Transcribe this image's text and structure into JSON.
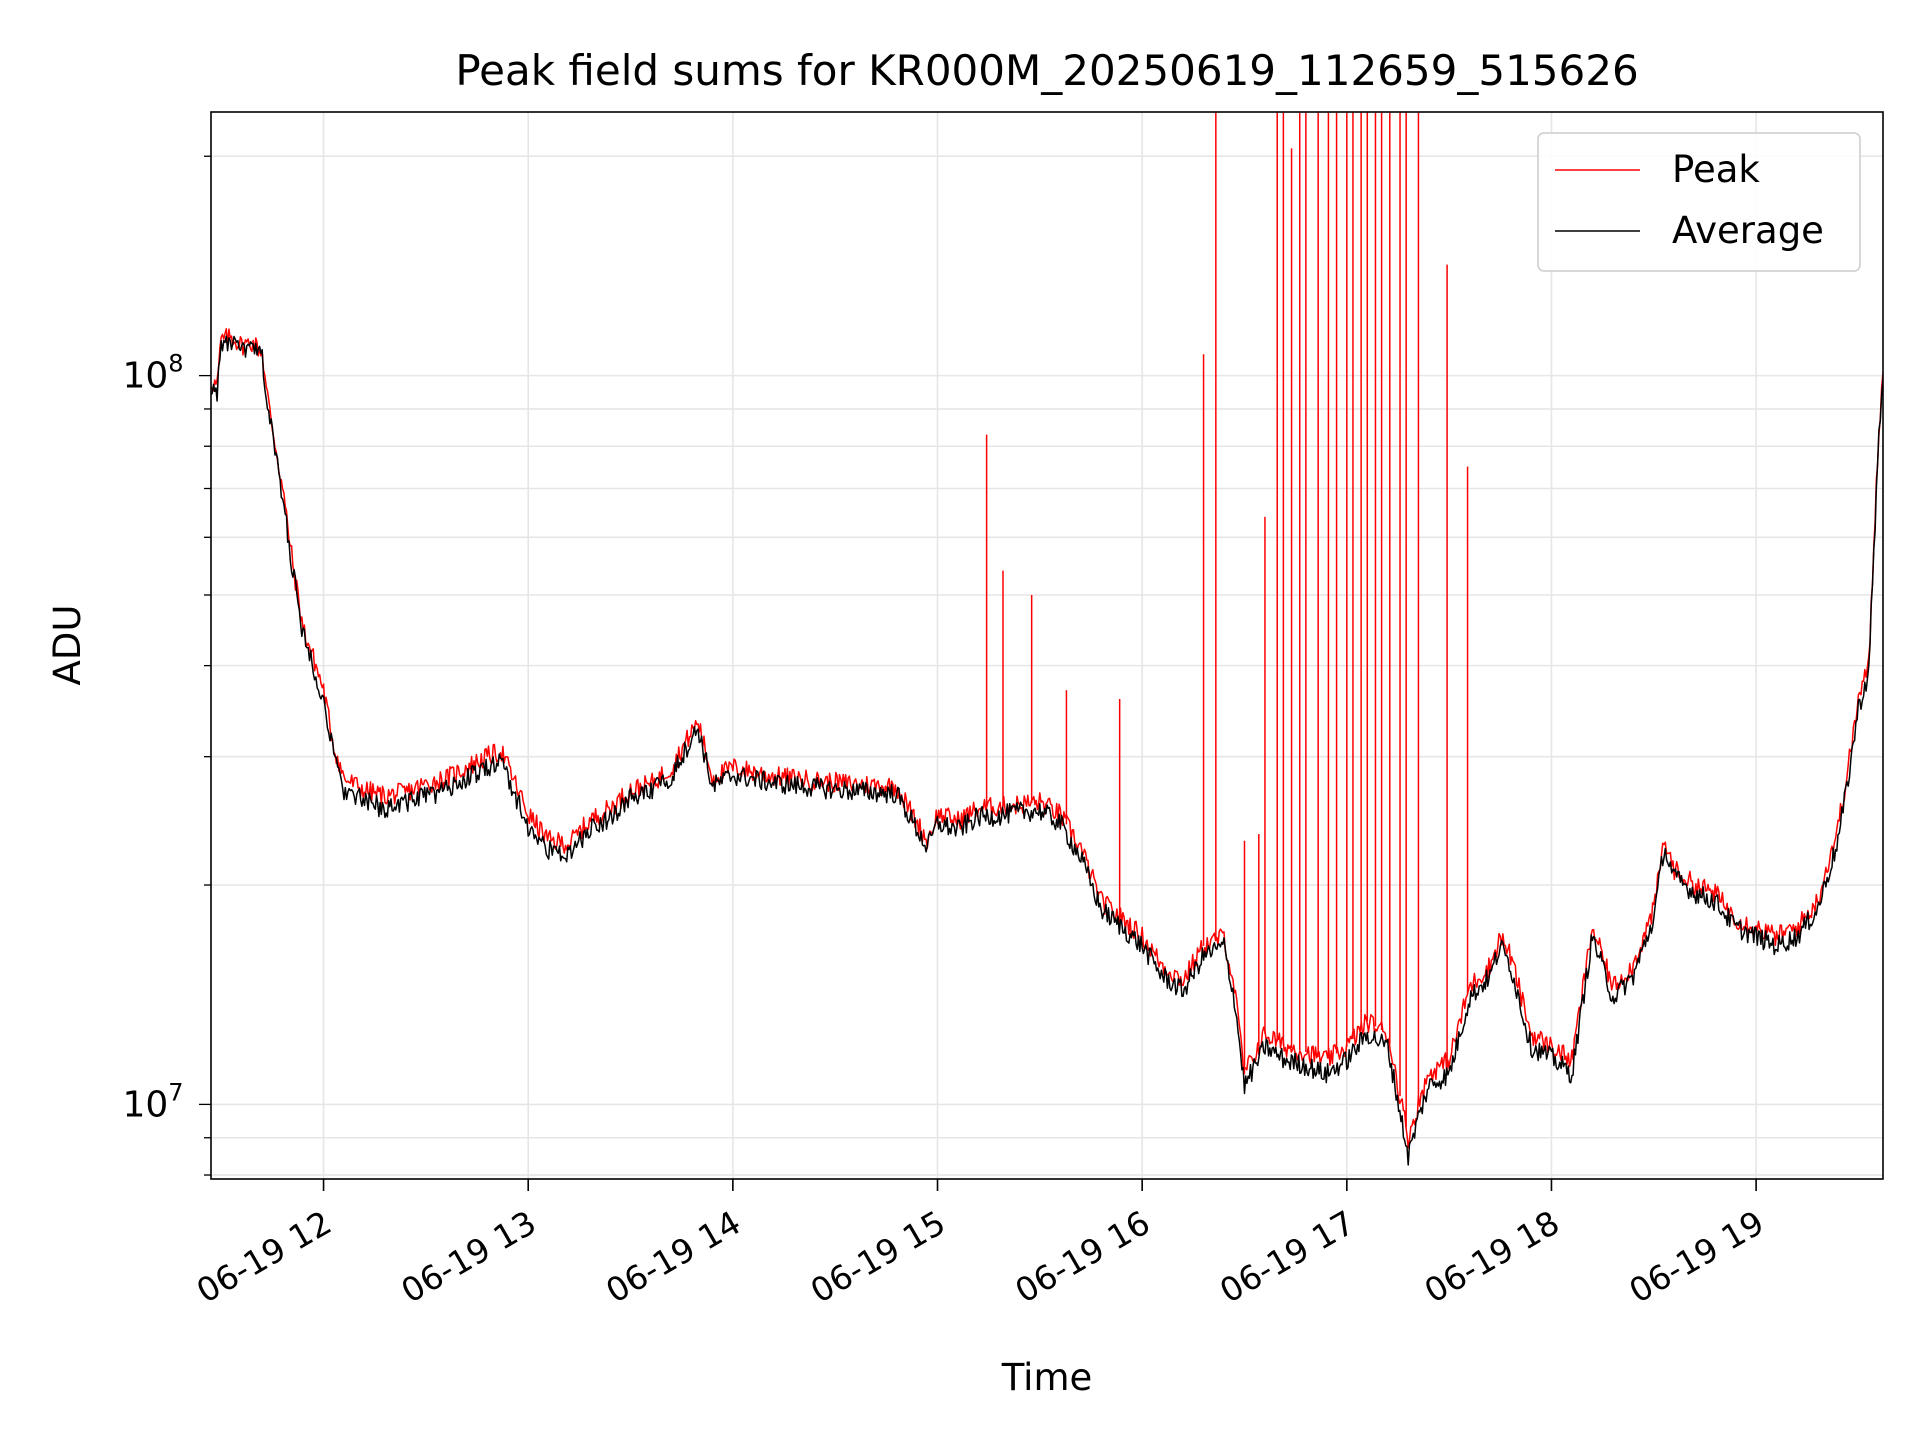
{
  "chart_data": {
    "type": "line",
    "title": "Peak field sums for KR000M_20250619_112659_515626",
    "xlabel": "Time",
    "ylabel": "ADU",
    "x_unit": "hours (2025-06-19, HH)",
    "xlim": [
      11.45,
      19.62
    ],
    "ylim": [
      7900000.0,
      230000000.0
    ],
    "yscale": "log",
    "grid": true,
    "legend_position": "top-right",
    "x_ticks": [
      {
        "value": 12,
        "label": "06-19 12"
      },
      {
        "value": 13,
        "label": "06-19 13"
      },
      {
        "value": 14,
        "label": "06-19 14"
      },
      {
        "value": 15,
        "label": "06-19 15"
      },
      {
        "value": 16,
        "label": "06-19 16"
      },
      {
        "value": 17,
        "label": "06-19 17"
      },
      {
        "value": 18,
        "label": "06-19 18"
      },
      {
        "value": 19,
        "label": "06-19 19"
      }
    ],
    "y_ticks": [
      {
        "value": 10000000,
        "base": "10",
        "exp": "7"
      },
      {
        "value": 100000000,
        "base": "10",
        "exp": "8"
      }
    ],
    "series": [
      {
        "name": "Peak",
        "color": "#ff0000",
        "x": [
          11.45,
          11.48,
          11.5,
          11.55,
          11.6,
          11.65,
          11.7,
          11.72,
          11.75,
          11.8,
          11.85,
          11.9,
          11.95,
          12.0,
          12.05,
          12.1,
          12.15,
          12.2,
          12.3,
          12.4,
          12.5,
          12.6,
          12.7,
          12.8,
          12.87,
          12.95,
          13.0,
          13.1,
          13.2,
          13.3,
          13.4,
          13.5,
          13.6,
          13.7,
          13.8,
          13.83,
          13.9,
          14.0,
          14.2,
          14.4,
          14.6,
          14.8,
          14.95,
          15.0,
          15.1,
          15.2,
          15.3,
          15.4,
          15.5,
          15.6,
          15.7,
          15.8,
          15.9,
          16.0,
          16.1,
          16.2,
          16.3,
          16.4,
          16.45,
          16.5,
          16.6,
          16.7,
          16.8,
          16.9,
          17.0,
          17.1,
          17.2,
          17.3,
          17.35,
          17.4,
          17.5,
          17.6,
          17.7,
          17.75,
          17.8,
          17.9,
          18.0,
          18.1,
          18.2,
          18.3,
          18.4,
          18.5,
          18.55,
          18.6,
          18.7,
          18.8,
          18.9,
          19.0,
          19.1,
          19.2,
          19.3,
          19.4,
          19.45,
          19.5,
          19.55,
          19.6,
          19.62
        ],
        "y": [
          98000000,
          97000000,
          112000000,
          113000000,
          110000000,
          111000000,
          108000000,
          96000000,
          85000000,
          70000000,
          55000000,
          45000000,
          41000000,
          37000000,
          31000000,
          28000000,
          27500000,
          27000000,
          26500000,
          26800000,
          27500000,
          28000000,
          29000000,
          30000000,
          30500000,
          27000000,
          25000000,
          23000000,
          22800000,
          24500000,
          25500000,
          27000000,
          27500000,
          29000000,
          32500000,
          33500000,
          28000000,
          29000000,
          28200000,
          27800000,
          27500000,
          27300000,
          23000000,
          25000000,
          24500000,
          25500000,
          25600000,
          25800000,
          26000000,
          25000000,
          22500000,
          19000000,
          18000000,
          17000000,
          15500000,
          14800000,
          16500000,
          17000000,
          14500000,
          11000000,
          12500000,
          12000000,
          11800000,
          11500000,
          12000000,
          13000000,
          12500000,
          9000000,
          10000000,
          11000000,
          11500000,
          14500000,
          15500000,
          17000000,
          16000000,
          12500000,
          12000000,
          11500000,
          17500000,
          14500000,
          15500000,
          18500000,
          23000000,
          21000000,
          20000000,
          19500000,
          18000000,
          17500000,
          17000000,
          17500000,
          19000000,
          24000000,
          29000000,
          36000000,
          40000000,
          85000000,
          101000000
        ]
      },
      {
        "name": "Average",
        "color": "#000000",
        "x": [
          11.45,
          11.48,
          11.5,
          11.55,
          11.6,
          11.65,
          11.7,
          11.72,
          11.75,
          11.8,
          11.85,
          11.9,
          11.95,
          12.0,
          12.05,
          12.1,
          12.15,
          12.2,
          12.3,
          12.4,
          12.5,
          12.6,
          12.7,
          12.8,
          12.87,
          12.95,
          13.0,
          13.1,
          13.2,
          13.3,
          13.4,
          13.5,
          13.6,
          13.7,
          13.8,
          13.83,
          13.9,
          14.0,
          14.2,
          14.4,
          14.6,
          14.8,
          14.95,
          15.0,
          15.1,
          15.2,
          15.3,
          15.4,
          15.5,
          15.6,
          15.7,
          15.8,
          15.9,
          16.0,
          16.1,
          16.2,
          16.3,
          16.4,
          16.45,
          16.5,
          16.6,
          16.7,
          16.8,
          16.9,
          17.0,
          17.1,
          17.2,
          17.3,
          17.35,
          17.4,
          17.5,
          17.6,
          17.7,
          17.75,
          17.8,
          17.9,
          18.0,
          18.1,
          18.2,
          18.3,
          18.4,
          18.5,
          18.55,
          18.6,
          18.7,
          18.8,
          18.9,
          19.0,
          19.1,
          19.2,
          19.3,
          19.4,
          19.45,
          19.5,
          19.55,
          19.6,
          19.62
        ],
        "y": [
          96000000,
          95000000,
          110000000,
          111000000,
          108000000,
          109000000,
          106000000,
          94000000,
          83000000,
          68000000,
          54000000,
          44000000,
          40000000,
          36000000,
          30000000,
          27000000,
          26500000,
          26000000,
          25500000,
          26000000,
          26500000,
          27000000,
          28000000,
          29000000,
          29500000,
          26000000,
          24000000,
          22300000,
          22000000,
          23800000,
          24800000,
          26300000,
          26800000,
          28300000,
          31800000,
          32800000,
          27300000,
          28300000,
          27600000,
          27200000,
          26900000,
          26700000,
          22500000,
          24300000,
          23800000,
          24800000,
          24900000,
          25200000,
          25300000,
          24300000,
          21800000,
          18500000,
          17500000,
          16500000,
          15000000,
          14300000,
          16000000,
          16500000,
          14000000,
          10600000,
          12000000,
          11500000,
          11300000,
          11000000,
          11500000,
          12500000,
          12000000,
          8500000,
          9600000,
          10600000,
          11000000,
          14000000,
          15000000,
          16500000,
          15500000,
          12000000,
          11600000,
          11000000,
          17000000,
          14000000,
          15000000,
          18000000,
          22500000,
          20500000,
          19500000,
          19000000,
          17500000,
          17000000,
          16500000,
          17000000,
          18500000,
          23000000,
          28000000,
          35000000,
          39000000,
          83000000,
          99000000
        ]
      }
    ],
    "peak_spikes": {
      "x": [
        15.24,
        15.32,
        15.46,
        15.63,
        15.89,
        16.3,
        16.36,
        16.5,
        16.57,
        16.6,
        16.66,
        16.69,
        16.73,
        16.77,
        16.8,
        16.86,
        16.91,
        16.95,
        17.0,
        17.03,
        17.07,
        17.1,
        17.14,
        17.17,
        17.21,
        17.26,
        17.29,
        17.35,
        17.49,
        17.59
      ],
      "y": [
        83000000,
        54000000,
        50000000,
        37000000,
        36000000,
        107000000,
        230000000,
        23000000,
        23500000,
        64000000,
        230000000,
        230000000,
        205000000,
        230000000,
        230000000,
        230000000,
        230000000,
        230000000,
        230000000,
        230000000,
        230000000,
        230000000,
        230000000,
        230000000,
        230000000,
        230000000,
        230000000,
        230000000,
        142000000,
        75000000
      ]
    }
  }
}
